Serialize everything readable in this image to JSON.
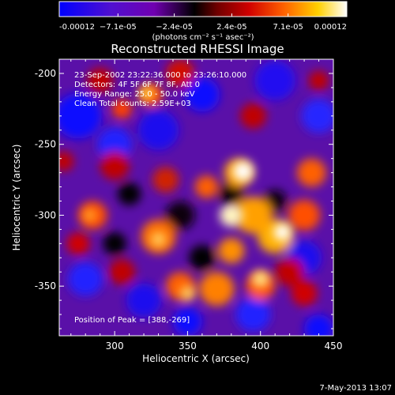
{
  "chart_data": {
    "type": "heatmap",
    "title": "Reconstructed RHESSI Image",
    "xlabel": "Heliocentric X (arcsec)",
    "ylabel": "Heliocentric Y (arcsec)",
    "xlim": [
      262,
      450
    ],
    "ylim": [
      -385,
      -190
    ],
    "x_ticks": [
      300,
      350,
      400,
      450
    ],
    "x_tick_labels": [
      "300",
      "350",
      "400",
      "450"
    ],
    "y_ticks": [
      -200,
      -250,
      -300,
      -350
    ],
    "y_tick_labels": [
      "-200",
      "-250",
      "-300",
      "-350"
    ],
    "colorbar": {
      "range": [
        -0.00012,
        0.00012
      ],
      "tick_values": [
        -0.00012,
        -7.1e-05,
        -2.4e-05,
        2.4e-05,
        7.1e-05,
        0.00012
      ],
      "tick_labels": [
        "-0.00012",
        "−7.1e-05",
        "−2.4e-05",
        "2.4e-05",
        "7.1e-05",
        "0.00012"
      ],
      "units_label": "(photons cm⁻² s⁻¹ asec⁻²)",
      "colormap": [
        "#0000ff",
        "#7000b0",
        "#000000",
        "#c00000",
        "#ff6000",
        "#ffd000",
        "#ffffff"
      ]
    },
    "annotations": [
      "23-Sep-2002 23:22:36.000 to 23:26:10.000",
      "Detectors: 4F 5F 6F 7F 8F, Att 0",
      "Energy Range: 25.0 - 50.0 keV",
      "Clean     Total counts: 2.59E+03"
    ],
    "peak_label": "Position of Peak = [388,-269]",
    "peak": [
      388,
      -269
    ],
    "footer_date": "7-May-2013 13:07",
    "grid": false
  }
}
